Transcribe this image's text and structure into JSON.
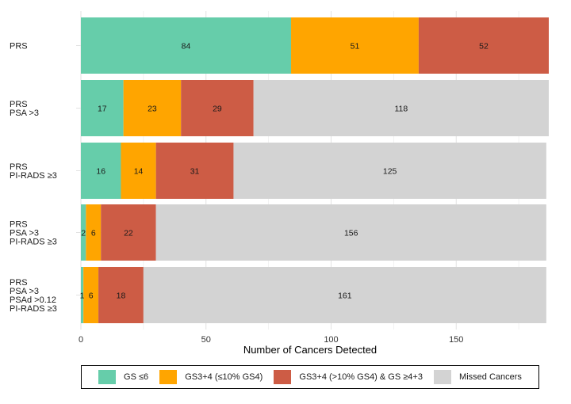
{
  "chart_data": {
    "type": "bar",
    "orientation": "horizontal",
    "stacked": true,
    "xlabel": "Number of Cancers Detected",
    "ylabel": "",
    "xlim": [
      0,
      187
    ],
    "xticks": [
      0,
      50,
      100,
      150
    ],
    "grid": true,
    "legend_position": "bottom",
    "categories": [
      [
        "PRS"
      ],
      [
        "PRS",
        "PSA >3"
      ],
      [
        "PRS",
        "PI-RADS ≥3"
      ],
      [
        "PRS",
        "PSA >3",
        "PI-RADS ≥3"
      ],
      [
        "PRS",
        "PSA >3",
        "PSAd >0.12",
        "PI-RADS ≥3"
      ]
    ],
    "series": [
      {
        "name": "GS ≤6",
        "color": "#66CDAA",
        "values": [
          84,
          17,
          16,
          2,
          1
        ]
      },
      {
        "name": "GS3+4 (≤10% GS4)",
        "color": "#FFA500",
        "values": [
          51,
          23,
          14,
          6,
          6
        ]
      },
      {
        "name": "GS3+4 (>10% GS4) & GS ≥4+3",
        "color": "#CD5C45",
        "values": [
          52,
          29,
          31,
          22,
          18
        ]
      },
      {
        "name": "Missed Cancers",
        "color": "#D3D3D3",
        "values": [
          0,
          118,
          125,
          156,
          161
        ]
      }
    ]
  }
}
